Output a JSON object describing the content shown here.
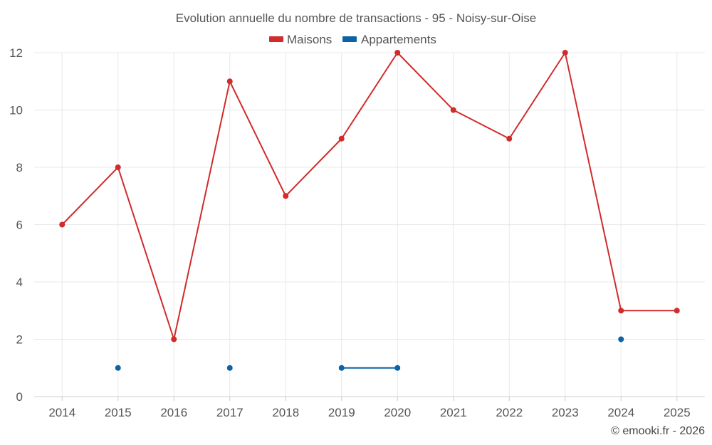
{
  "chart_data": {
    "type": "line",
    "title": "Evolution annuelle du nombre de transactions - 95 - Noisy-sur-Oise",
    "categories": [
      "2014",
      "2015",
      "2016",
      "2017",
      "2018",
      "2019",
      "2020",
      "2021",
      "2022",
      "2023",
      "2024",
      "2025"
    ],
    "ylim": [
      0,
      12
    ],
    "yticks": [
      0,
      2,
      4,
      6,
      8,
      10,
      12
    ],
    "grid": true,
    "legend_position": "top-center",
    "series": [
      {
        "name": "Maisons",
        "color": "#d12b2b",
        "values": [
          6,
          8,
          2,
          11,
          7,
          9,
          12,
          10,
          9,
          12,
          3,
          3
        ]
      },
      {
        "name": "Appartements",
        "color": "#0b63a6",
        "values": [
          null,
          1,
          null,
          1,
          null,
          1,
          1,
          null,
          null,
          null,
          2,
          null
        ]
      }
    ],
    "credit": "© emooki.fr - 2026"
  }
}
